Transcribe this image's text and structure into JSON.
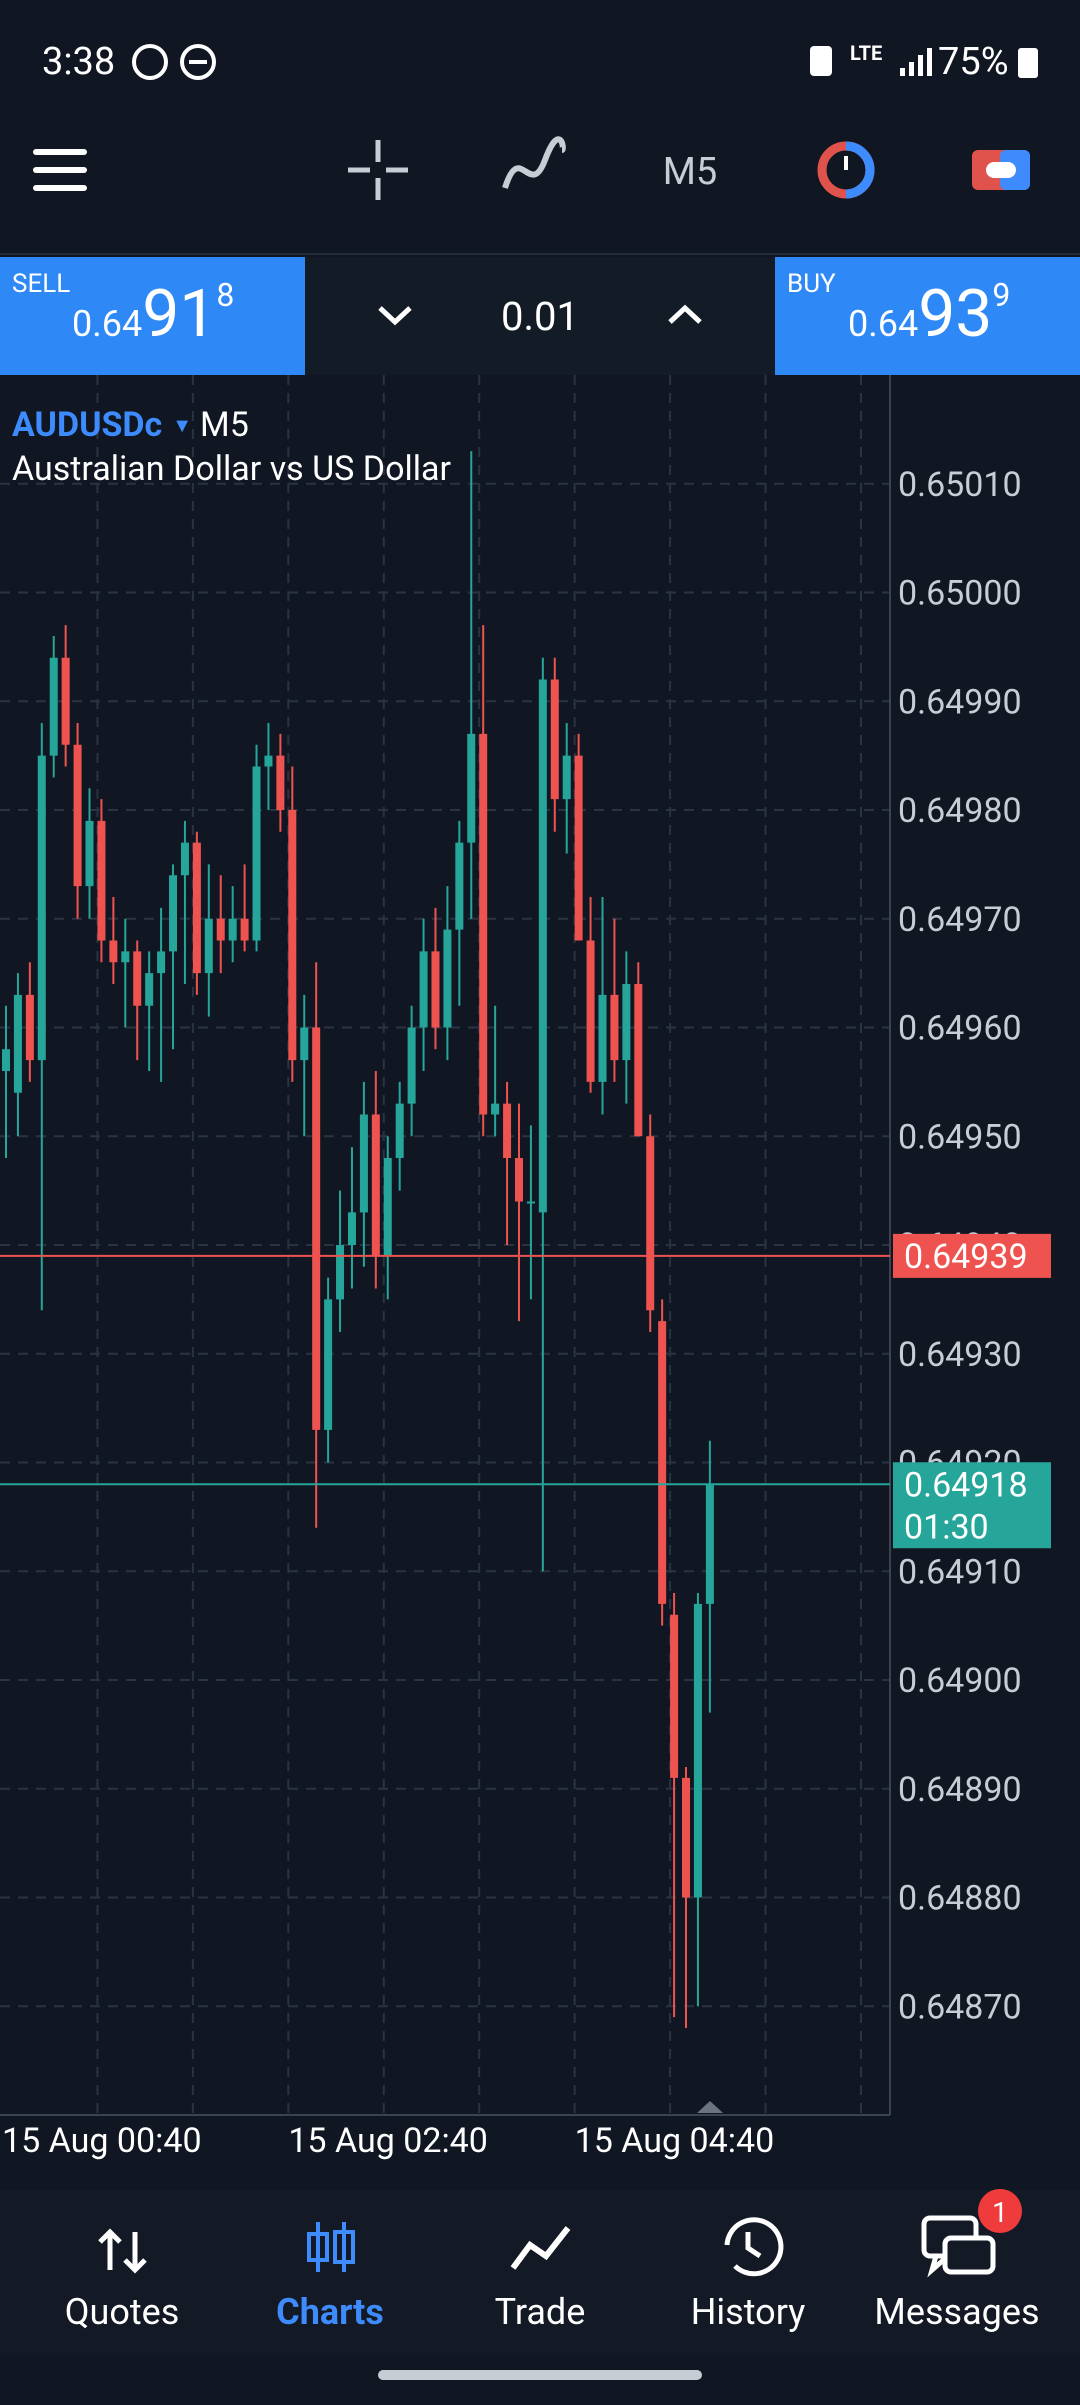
{
  "status_bar": {
    "time": "3:38",
    "network": "LTE",
    "battery": "75%"
  },
  "toolbar": {
    "timeframe": "M5"
  },
  "trade_panel": {
    "sell": {
      "label": "SELL",
      "price_prefix": "0.64",
      "price_big": "91",
      "price_sup": "8"
    },
    "volume": "0.01",
    "buy": {
      "label": "BUY",
      "price_prefix": "0.64",
      "price_big": "93",
      "price_sup": "9"
    }
  },
  "chart_data": {
    "type": "candlestick",
    "symbol": "AUDUSDc",
    "timeframe": "M5",
    "title": "Australian Dollar vs US Dollar",
    "up_color": "#26a69a",
    "down_color": "#ef5350",
    "grid": true,
    "open": [
      0.64956,
      0.64954,
      0.64963,
      0.64957,
      0.64985,
      0.64994,
      0.64986,
      0.64973,
      0.64979,
      0.64968,
      0.64966,
      0.64967,
      0.64962,
      0.64965,
      0.64967,
      0.64974,
      0.64977,
      0.64965,
      0.6497,
      0.64968,
      0.6497,
      0.64968,
      0.64984,
      0.64985,
      0.6498,
      0.64957,
      0.6496,
      0.64923,
      0.64935,
      0.6494,
      0.64943,
      0.64952,
      0.64939,
      0.64948,
      0.64953,
      0.6496,
      0.64967,
      0.6496,
      0.64969,
      0.64977,
      0.64987,
      0.64952,
      0.64953,
      0.64948,
      0.64944,
      0.64943,
      0.64992,
      0.64981,
      0.64985,
      0.64968,
      0.64955,
      0.64963,
      0.64957,
      0.64964,
      0.6495,
      0.64933,
      0.64906,
      0.64891,
      0.6488,
      0.64907
    ],
    "high": [
      0.64962,
      0.64965,
      0.64966,
      0.64988,
      0.64996,
      0.64997,
      0.64988,
      0.64982,
      0.64981,
      0.64972,
      0.6497,
      0.64968,
      0.64967,
      0.64971,
      0.64975,
      0.64979,
      0.64978,
      0.64975,
      0.64974,
      0.64973,
      0.64975,
      0.64986,
      0.64988,
      0.64987,
      0.64984,
      0.64963,
      0.64966,
      0.64937,
      0.64945,
      0.64949,
      0.64955,
      0.64956,
      0.6495,
      0.64955,
      0.64962,
      0.6497,
      0.64971,
      0.64973,
      0.64979,
      0.65013,
      0.64997,
      0.64962,
      0.64955,
      0.64953,
      0.64951,
      0.64994,
      0.64994,
      0.64988,
      0.64987,
      0.64972,
      0.64972,
      0.6497,
      0.64967,
      0.64966,
      0.64952,
      0.64935,
      0.64908,
      0.64892,
      0.64908,
      0.64922
    ],
    "low": [
      0.64948,
      0.6495,
      0.64955,
      0.64934,
      0.64983,
      0.64984,
      0.6497,
      0.6497,
      0.64966,
      0.64964,
      0.6496,
      0.64957,
      0.64956,
      0.64955,
      0.64958,
      0.64964,
      0.64963,
      0.64961,
      0.64965,
      0.64966,
      0.64967,
      0.64967,
      0.6498,
      0.64978,
      0.64955,
      0.6495,
      0.64914,
      0.6492,
      0.64932,
      0.64936,
      0.64938,
      0.64936,
      0.64935,
      0.64945,
      0.6495,
      0.64956,
      0.64958,
      0.64957,
      0.64962,
      0.6497,
      0.6495,
      0.6495,
      0.6494,
      0.64933,
      0.64935,
      0.6491,
      0.64978,
      0.64976,
      0.64968,
      0.64954,
      0.64952,
      0.64955,
      0.64953,
      0.6495,
      0.64932,
      0.64905,
      0.64869,
      0.64868,
      0.6487,
      0.64897
    ],
    "close": [
      0.64958,
      0.64963,
      0.64957,
      0.64985,
      0.64994,
      0.64986,
      0.64973,
      0.64979,
      0.64968,
      0.64966,
      0.64967,
      0.64962,
      0.64965,
      0.64967,
      0.64974,
      0.64977,
      0.64965,
      0.6497,
      0.64968,
      0.6497,
      0.64968,
      0.64984,
      0.64985,
      0.6498,
      0.64957,
      0.6496,
      0.64923,
      0.64935,
      0.6494,
      0.64943,
      0.64952,
      0.64939,
      0.64948,
      0.64953,
      0.6496,
      0.64967,
      0.6496,
      0.64969,
      0.64977,
      0.64987,
      0.64952,
      0.64953,
      0.64948,
      0.64944,
      0.64944,
      0.64992,
      0.64981,
      0.64985,
      0.64968,
      0.64955,
      0.64963,
      0.64957,
      0.64964,
      0.6495,
      0.64934,
      0.64907,
      0.64891,
      0.6488,
      0.64907,
      0.64918
    ],
    "ylim": [
      0.6486,
      0.6502
    ],
    "yticks": [
      {
        "value": 0.6501,
        "label": "0.65010"
      },
      {
        "value": 0.65,
        "label": "0.65000"
      },
      {
        "value": 0.6499,
        "label": "0.64990"
      },
      {
        "value": 0.6498,
        "label": "0.64980"
      },
      {
        "value": 0.6497,
        "label": "0.64970"
      },
      {
        "value": 0.6496,
        "label": "0.64960"
      },
      {
        "value": 0.6495,
        "label": "0.64950"
      },
      {
        "value": 0.6494,
        "label": "0.64940"
      },
      {
        "value": 0.6493,
        "label": "0.64930"
      },
      {
        "value": 0.6492,
        "label": "0.64920"
      },
      {
        "value": 0.6491,
        "label": "0.64910"
      },
      {
        "value": 0.649,
        "label": "0.64900"
      },
      {
        "value": 0.6489,
        "label": "0.64890"
      },
      {
        "value": 0.6488,
        "label": "0.64880"
      },
      {
        "value": 0.6487,
        "label": "0.64870"
      }
    ],
    "xticks": [
      "15 Aug 00:40",
      "15 Aug 02:40",
      "15 Aug 04:40"
    ],
    "ask_line": {
      "value": 0.64939,
      "color": "#ef5350"
    },
    "bid_line": {
      "value": 0.64918,
      "color": "#26a69a",
      "timer": "01:30"
    }
  },
  "nav": {
    "items": [
      "Quotes",
      "Charts",
      "Trade",
      "History",
      "Messages"
    ],
    "badge": "1"
  }
}
